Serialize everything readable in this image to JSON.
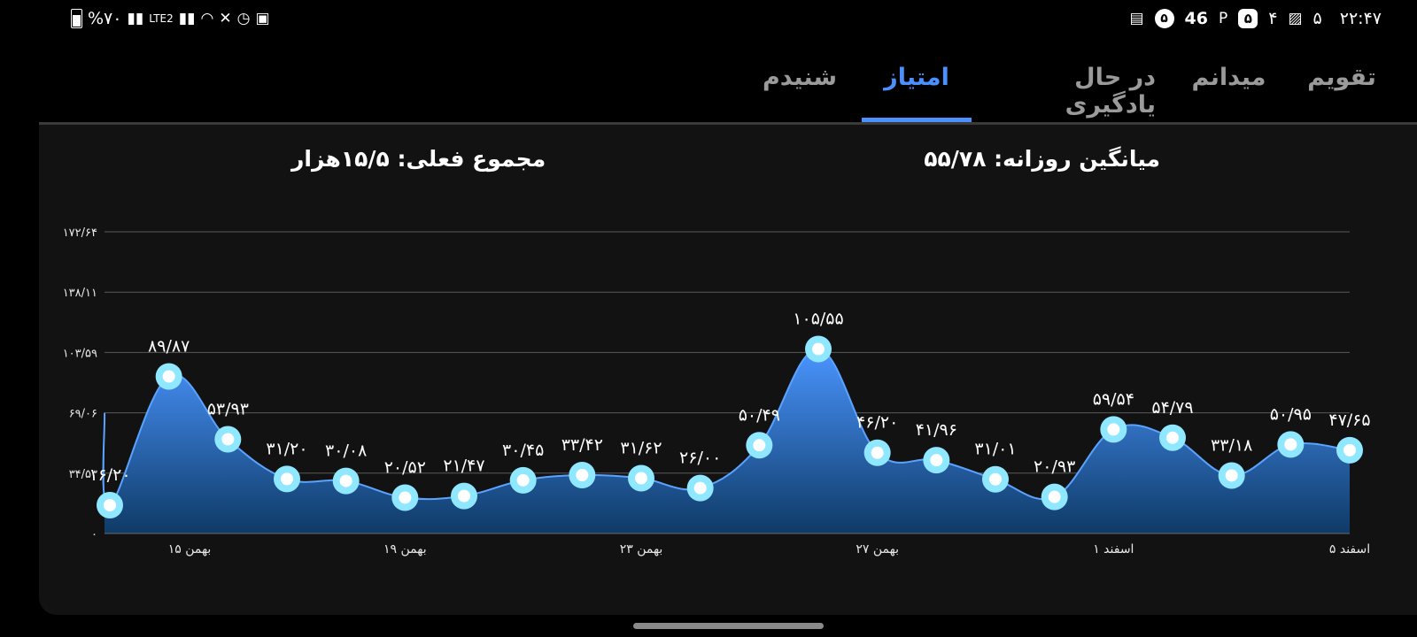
{
  "status_bar": {
    "time": "۲۲:۴۷",
    "right_items": [
      "۵",
      "۴",
      "۵",
      "46",
      "۵"
    ],
    "battery": "%۷۰",
    "network": "LTE2"
  },
  "tabs": [
    {
      "label": "تقویم",
      "active": false
    },
    {
      "label": "میدانم",
      "active": false
    },
    {
      "label": "در حال یادگیری",
      "active": false
    },
    {
      "label": "امتیاز",
      "active": true
    },
    {
      "label": "شنیدم",
      "active": false
    }
  ],
  "stats": {
    "daily_average": "میانگین روزانه: ۵۵/۷۸",
    "current_total": "مجموع فعلی: ۱۵/۵هزار"
  },
  "colors": {
    "accent": "#4a90ff",
    "area_top": "#4a95ff",
    "area_bottom": "#0e3a66",
    "marker_ring": "#8fe8ff"
  },
  "chart_data": {
    "type": "area",
    "ylim": [
      0,
      172.64
    ],
    "y_ticks": [
      "۰",
      "۳۴/۵۳",
      "۶۹/۰۶",
      "۱۰۳/۵۹",
      "۱۳۸/۱۱",
      "۱۷۲/۶۴"
    ],
    "y_tick_values": [
      0,
      34.53,
      69.06,
      103.59,
      138.11,
      172.64
    ],
    "x_ticks": [
      {
        "label": "۱۵ بهمن",
        "at_point": 1.35
      },
      {
        "label": "۱۹ بهمن",
        "at_point": 5
      },
      {
        "label": "۲۳ بهمن",
        "at_point": 9
      },
      {
        "label": "۲۷ بهمن",
        "at_point": 13
      },
      {
        "label": "۱ اسفند",
        "at_point": 17
      },
      {
        "label": "۵ اسفند",
        "at_point": 21
      }
    ],
    "start_value": 69.06,
    "values": [
      16.2,
      89.87,
      53.93,
      31.2,
      30.08,
      20.52,
      21.47,
      30.45,
      33.42,
      31.62,
      26.0,
      50.49,
      105.55,
      46.2,
      41.96,
      31.01,
      20.93,
      59.54,
      54.79,
      33.18,
      50.95,
      47.65
    ],
    "value_labels": [
      "۱۶/۲۰",
      "۸۹/۸۷",
      "۵۳/۹۳",
      "۳۱/۲۰",
      "۳۰/۰۸",
      "۲۰/۵۲",
      "۲۱/۴۷",
      "۳۰/۴۵",
      "۳۳/۴۲",
      "۳۱/۶۲",
      "۲۶/۰۰",
      "۵۰/۴۹",
      "۱۰۵/۵۵",
      "۴۶/۲۰",
      "۴۱/۹۶",
      "۳۱/۰۱",
      "۲۰/۹۳",
      "۵۹/۵۴",
      "۵۴/۷۹",
      "۳۳/۱۸",
      "۵۰/۹۵",
      "۴۷/۶۵"
    ]
  }
}
